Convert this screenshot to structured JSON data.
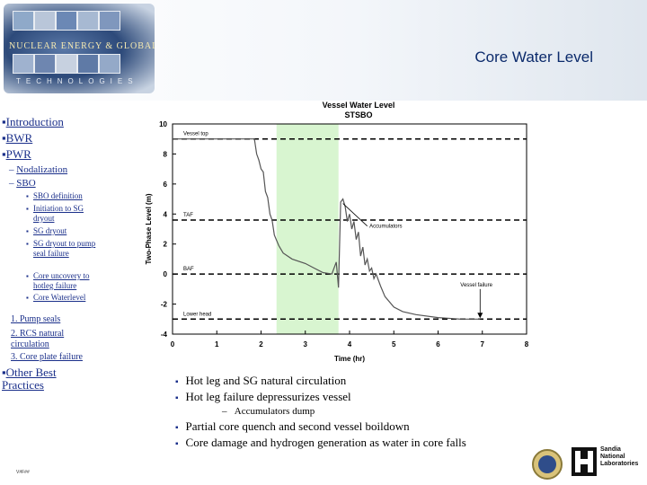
{
  "header": {
    "logo_text": "NUCLEAR ENERGY & GLOBAL SECURITY",
    "logo_subtext": "TECHNOLOGIES",
    "page_title": "Core Water Level"
  },
  "nav": {
    "introduction": "Introduction",
    "bwr": "BWR",
    "pwr": "PWR",
    "nodalization": "Nodalization",
    "sbo": "SBO",
    "sbo_items": [
      "SBO definition",
      "Initiation to SG dryout",
      "SG dryout",
      "SG dryout to pump seal failure",
      "Core uncovery to hotleg failure",
      "Core Waterlevel"
    ],
    "numbered": [
      "1. Pump seals",
      "2. RCS natural circulation",
      "3. Core plate failure"
    ],
    "other": "Other Best Practices"
  },
  "chart_data": {
    "type": "line",
    "title": "Vessel Water Level",
    "subtitle": "STSBO",
    "xlabel": "Time (hr)",
    "ylabel": "Two-Phase Level (m)",
    "xlim": [
      0,
      8
    ],
    "ylim": [
      -4,
      10
    ],
    "xticks": [
      0,
      1,
      2,
      3,
      4,
      5,
      6,
      7,
      8
    ],
    "yticks": [
      -4,
      -2,
      0,
      2,
      4,
      6,
      8,
      10
    ],
    "shaded_region": {
      "x": [
        2.35,
        3.75
      ],
      "color": "#d8f5d0"
    },
    "reference_lines": [
      {
        "label": "Vessel top",
        "y": 9.0
      },
      {
        "label": "TAF",
        "y": 3.6
      },
      {
        "label": "BAF",
        "y": 0.0
      },
      {
        "label": "Lower head",
        "y": -3.0
      }
    ],
    "annotations": [
      {
        "label": "Accumulators",
        "x": 3.85,
        "y": 3.2
      },
      {
        "label": "Vessel failure",
        "x": 6.95,
        "y": -3.0
      }
    ],
    "series": [
      {
        "values": [
          [
            0,
            9.0
          ],
          [
            1.85,
            9.0
          ],
          [
            1.9,
            8.0
          ],
          [
            1.95,
            7.6
          ],
          [
            2.0,
            7.0
          ],
          [
            2.05,
            6.8
          ],
          [
            2.1,
            5.5
          ],
          [
            2.15,
            5.1
          ],
          [
            2.2,
            4.0
          ],
          [
            2.25,
            3.6
          ],
          [
            2.3,
            2.6
          ],
          [
            2.4,
            1.9
          ],
          [
            2.5,
            1.4
          ],
          [
            2.7,
            1.0
          ],
          [
            3.0,
            0.7
          ],
          [
            3.2,
            0.4
          ],
          [
            3.4,
            0.1
          ],
          [
            3.6,
            0.0
          ],
          [
            3.7,
            0.8
          ],
          [
            3.75,
            -0.9
          ],
          [
            3.8,
            4.8
          ],
          [
            3.85,
            5.0
          ],
          [
            3.9,
            4.5
          ],
          [
            3.95,
            3.5
          ],
          [
            4.0,
            4.0
          ],
          [
            4.05,
            3.0
          ],
          [
            4.1,
            3.5
          ],
          [
            4.15,
            2.3
          ],
          [
            4.2,
            2.8
          ],
          [
            4.25,
            1.2
          ],
          [
            4.3,
            1.8
          ],
          [
            4.35,
            0.6
          ],
          [
            4.4,
            1.0
          ],
          [
            4.45,
            0.2
          ],
          [
            4.5,
            0.4
          ],
          [
            4.55,
            -0.3
          ],
          [
            4.6,
            0.0
          ],
          [
            4.7,
            -0.8
          ],
          [
            4.8,
            -1.5
          ],
          [
            5.0,
            -2.2
          ],
          [
            5.2,
            -2.5
          ],
          [
            5.5,
            -2.7
          ],
          [
            6.0,
            -2.9
          ],
          [
            6.5,
            -3.0
          ],
          [
            6.95,
            -3.0
          ]
        ]
      }
    ]
  },
  "bullets": {
    "items": [
      "Hot leg and SG natural circulation",
      "Hot leg failure depressurizes vessel"
    ],
    "sub_item": "Accumulators dump",
    "items2": [
      "Partial core quench and second vessel boildown",
      "Core damage and hydrogen generation as water in core falls"
    ]
  },
  "footer": {
    "slide_id": "V#F##",
    "sandia_lines": [
      "Sandia",
      "National",
      "Laboratories"
    ]
  }
}
